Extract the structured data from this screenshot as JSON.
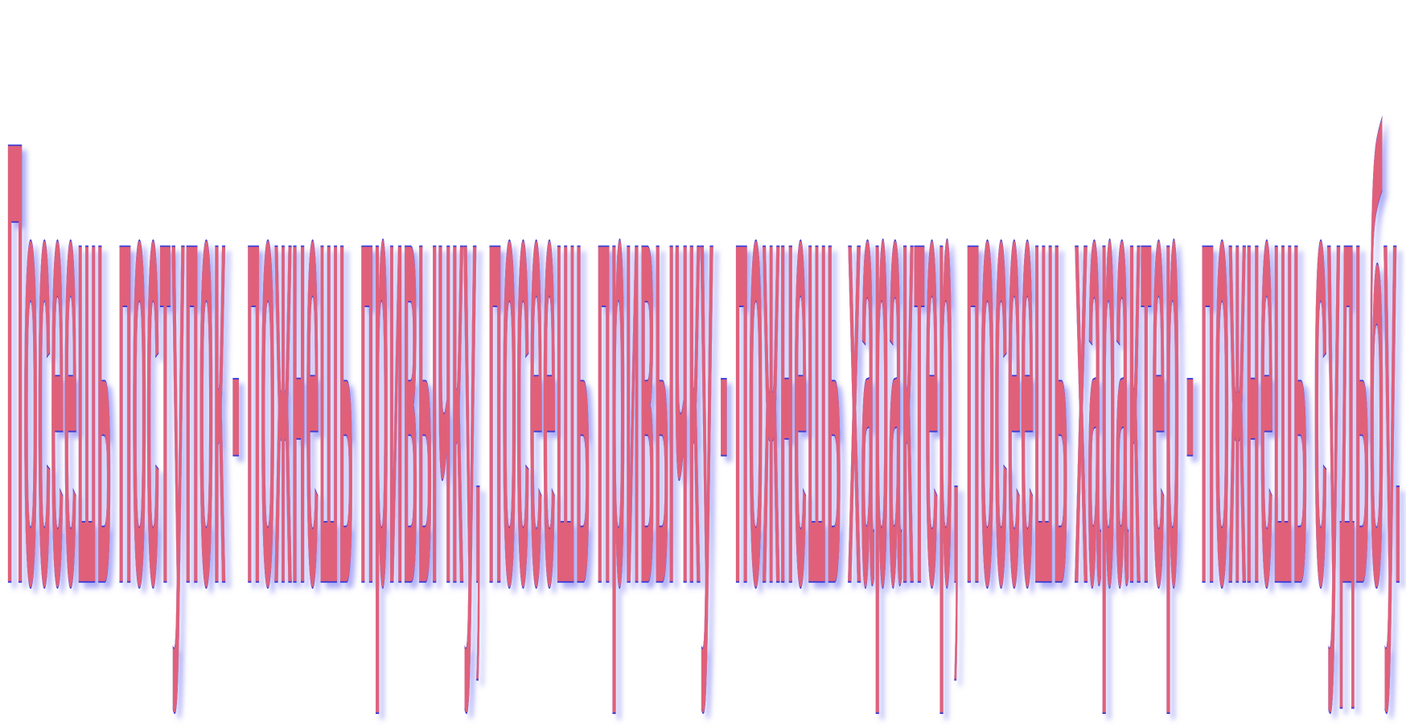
{
  "slogan": "Посеешь поступок - пожнешь привычку, посеешь привычку - пожнешь характер, посеешь характер - пожнешь судьбу.",
  "colors": {
    "fill": "#e0607a",
    "stroke": "#3b3bd4",
    "glow": "#6e6ef0",
    "background": "#ffffff"
  }
}
